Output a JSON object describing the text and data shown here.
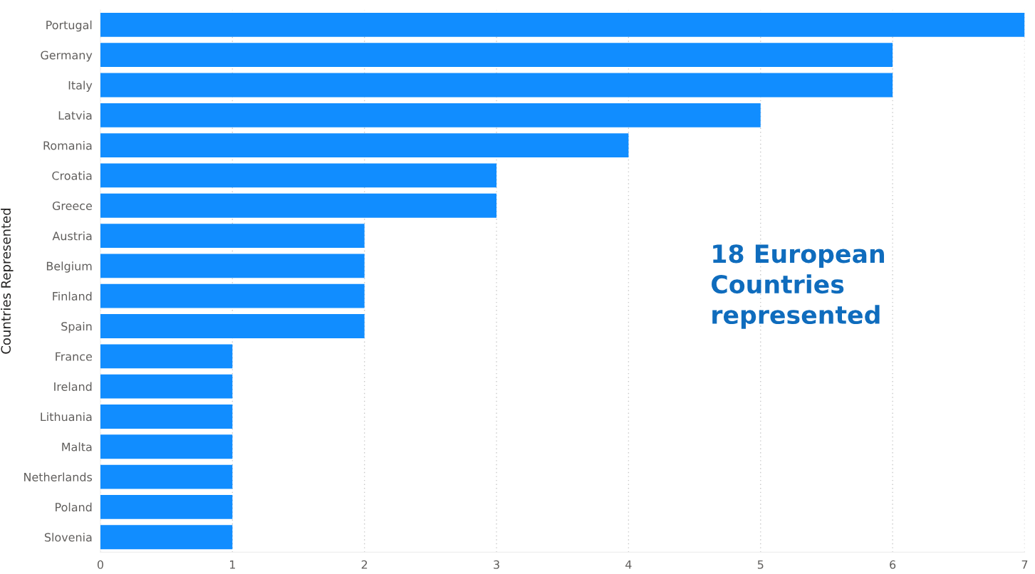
{
  "chart_data": {
    "type": "bar",
    "orientation": "horizontal",
    "ylabel": "Countries Represented",
    "categories": [
      "Portugal",
      "Germany",
      "Italy",
      "Latvia",
      "Romania",
      "Croatia",
      "Greece",
      "Austria",
      "Belgium",
      "Finland",
      "Spain",
      "France",
      "Ireland",
      "Lithuania",
      "Malta",
      "Netherlands",
      "Poland",
      "Slovenia"
    ],
    "values": [
      7,
      6,
      6,
      5,
      4,
      3,
      3,
      2,
      2,
      2,
      2,
      1,
      1,
      1,
      1,
      1,
      1,
      1
    ],
    "color": "#118dff",
    "xlim": [
      0,
      7
    ],
    "xticks": [
      0,
      1,
      2,
      3,
      4,
      5,
      6,
      7
    ],
    "grid": "x",
    "annotations": [
      "18 European\nCountries\nrepresented"
    ]
  }
}
